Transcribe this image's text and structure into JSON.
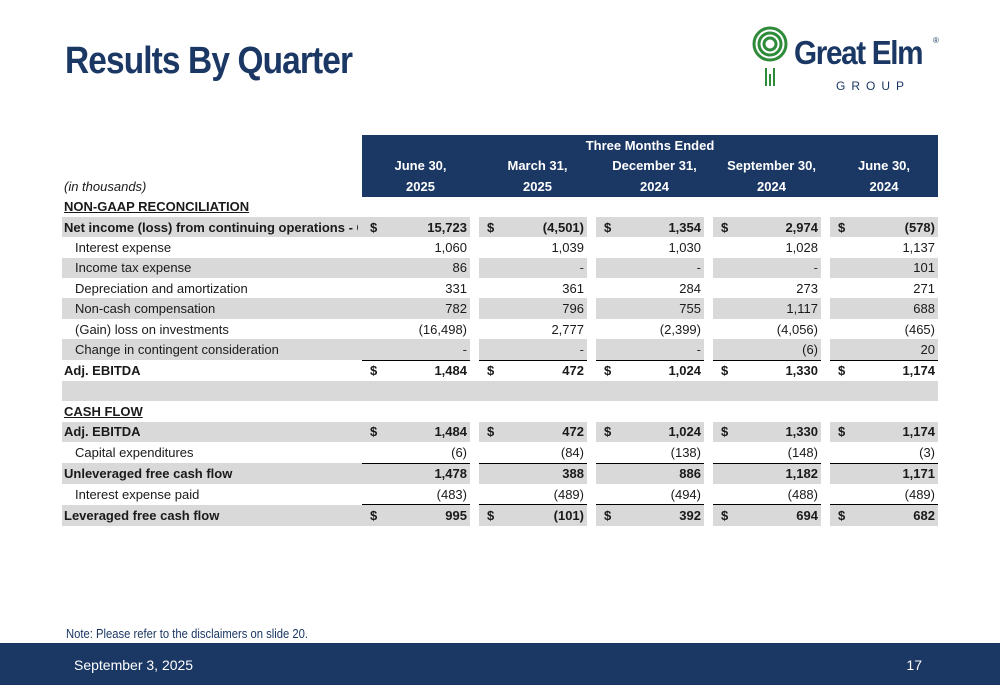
{
  "title": "Results By Quarter",
  "logo": {
    "name": "Great Elm",
    "sub": "GROUP",
    "reg": "®"
  },
  "table": {
    "group_header": "Three Months Ended",
    "units": "(in thousands)",
    "columns": [
      {
        "month": "June 30,",
        "year": "2025"
      },
      {
        "month": "March 31,",
        "year": "2025"
      },
      {
        "month": "December 31,",
        "year": "2024"
      },
      {
        "month": "September 30,",
        "year": "2024"
      },
      {
        "month": "June 30,",
        "year": "2024"
      }
    ],
    "section1": "NON-GAAP RECONCILIATION",
    "rows1": [
      {
        "label": "Net income (loss) from continuing operations - GAAP",
        "values": [
          "15,723",
          "(4,501)",
          "1,354",
          "2,974",
          "(578)"
        ]
      },
      {
        "label": "Interest expense",
        "values": [
          "1,060",
          "1,039",
          "1,030",
          "1,028",
          "1,137"
        ]
      },
      {
        "label": "Income tax expense",
        "values": [
          "86",
          "-",
          "-",
          "-",
          "101"
        ]
      },
      {
        "label": "Depreciation and amortization",
        "values": [
          "331",
          "361",
          "284",
          "273",
          "271"
        ]
      },
      {
        "label": "Non-cash compensation",
        "values": [
          "782",
          "796",
          "755",
          "1,117",
          "688"
        ]
      },
      {
        "label": "(Gain) loss on investments",
        "values": [
          "(16,498)",
          "2,777",
          "(2,399)",
          "(4,056)",
          "(465)"
        ]
      },
      {
        "label": "Change in contingent consideration",
        "values": [
          "-",
          "-",
          "-",
          "(6)",
          "20"
        ]
      },
      {
        "label": "Adj. EBITDA",
        "values": [
          "1,484",
          "472",
          "1,024",
          "1,330",
          "1,174"
        ]
      }
    ],
    "section2": "CASH FLOW",
    "rows2": [
      {
        "label": "Adj. EBITDA",
        "values": [
          "1,484",
          "472",
          "1,024",
          "1,330",
          "1,174"
        ]
      },
      {
        "label": "Capital expenditures",
        "values": [
          "(6)",
          "(84)",
          "(138)",
          "(148)",
          "(3)"
        ]
      },
      {
        "label": "Unleveraged free cash flow",
        "values": [
          "1,478",
          "388",
          "886",
          "1,182",
          "1,171"
        ]
      },
      {
        "label": "Interest expense paid",
        "values": [
          "(483)",
          "(489)",
          "(494)",
          "(488)",
          "(489)"
        ]
      },
      {
        "label": "Leveraged free cash flow",
        "values": [
          "995",
          "(101)",
          "392",
          "694",
          "682"
        ]
      }
    ],
    "dollar": "$"
  },
  "note": "Note: Please refer to the disclaimers on slide 20.",
  "footer": {
    "date": "September 3, 2025",
    "page": "17"
  },
  "colors": {
    "navy": "#1b3764",
    "green": "#2e8b3a",
    "shade": "#d9d9d9"
  }
}
